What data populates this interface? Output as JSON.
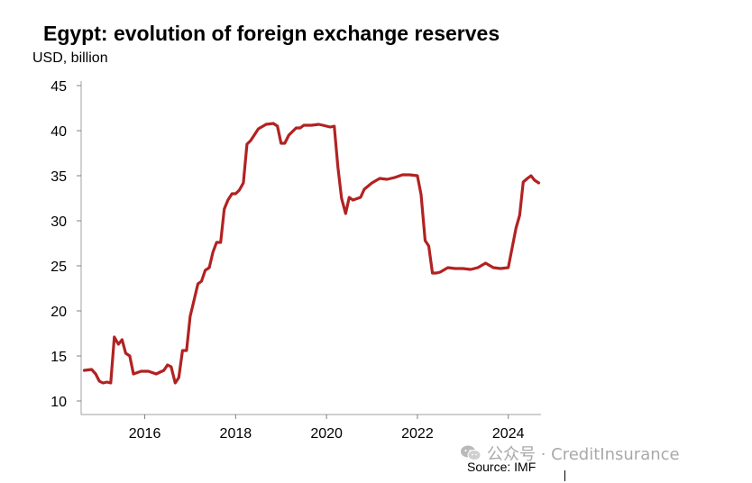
{
  "chart_data": {
    "type": "line",
    "title": "Egypt: evolution of foreign exchange reserves",
    "unit_label": "USD, billion",
    "xlabel": "",
    "ylabel": "USD, billion",
    "ylim": [
      10,
      45
    ],
    "xlim": [
      2014.6,
      2024.72
    ],
    "y_ticks": [
      "10",
      "15",
      "20",
      "25",
      "30",
      "35",
      "40",
      "45"
    ],
    "x_ticks": [
      "2016",
      "2018",
      "2020",
      "2022",
      "2024"
    ],
    "grid": false,
    "line_color": "#b22222",
    "series": [
      {
        "x": [
          2014.67,
          2014.83,
          2014.92,
          2015.0,
          2015.08,
          2015.17,
          2015.25,
          2015.33,
          2015.42,
          2015.5,
          2015.58,
          2015.67,
          2015.75,
          2015.92,
          2016.08,
          2016.25,
          2016.42,
          2016.5,
          2016.58,
          2016.67,
          2016.75,
          2016.83,
          2016.92,
          2017.0,
          2017.08,
          2017.17,
          2017.25,
          2017.33,
          2017.42,
          2017.5,
          2017.58,
          2017.67,
          2017.75,
          2017.83,
          2017.92,
          2018.0,
          2018.08,
          2018.17,
          2018.25,
          2018.33,
          2018.5,
          2018.67,
          2018.83,
          2018.92,
          2019.0,
          2019.08,
          2019.17,
          2019.33,
          2019.42,
          2019.5,
          2019.67,
          2019.83,
          2019.92,
          2020.08,
          2020.17,
          2020.25,
          2020.33,
          2020.42,
          2020.5,
          2020.58,
          2020.75,
          2020.83,
          2021.0,
          2021.17,
          2021.33,
          2021.5,
          2021.67,
          2021.83,
          2022.0,
          2022.08,
          2022.17,
          2022.25,
          2022.33,
          2022.42,
          2022.5,
          2022.67,
          2022.83,
          2023.0,
          2023.17,
          2023.33,
          2023.5,
          2023.67,
          2023.83,
          2024.0,
          2024.17,
          2024.25,
          2024.33,
          2024.42,
          2024.5,
          2024.58,
          2024.67
        ],
        "values": [
          13.4,
          13.5,
          13.0,
          12.2,
          12.0,
          12.1,
          12.0,
          17.1,
          16.3,
          16.8,
          15.3,
          15.0,
          13.0,
          13.3,
          13.3,
          13.0,
          13.4,
          14.0,
          13.8,
          12.0,
          12.6,
          15.6,
          15.6,
          19.4,
          21.1,
          23.0,
          23.3,
          24.5,
          24.8,
          26.5,
          27.6,
          27.6,
          31.3,
          32.3,
          33.0,
          33.0,
          33.4,
          34.2,
          38.5,
          38.9,
          40.2,
          40.7,
          40.8,
          40.5,
          38.6,
          38.6,
          39.5,
          40.3,
          40.3,
          40.6,
          40.6,
          40.7,
          40.6,
          40.4,
          40.5,
          36.0,
          32.5,
          30.8,
          32.6,
          32.3,
          32.6,
          33.5,
          34.2,
          34.7,
          34.6,
          34.8,
          35.1,
          35.1,
          35.0,
          32.9,
          27.8,
          27.2,
          24.2,
          24.2,
          24.3,
          24.8,
          24.7,
          24.7,
          24.6,
          24.8,
          25.3,
          24.8,
          24.7,
          24.8,
          29.2,
          30.6,
          34.3,
          34.7,
          35.0,
          34.5,
          34.2
        ]
      }
    ]
  },
  "footer": {
    "watermark_text": "公众号 · CreditInsurance",
    "source": "Source: IMF"
  },
  "icons": {
    "watermark": "wechat-icon"
  }
}
